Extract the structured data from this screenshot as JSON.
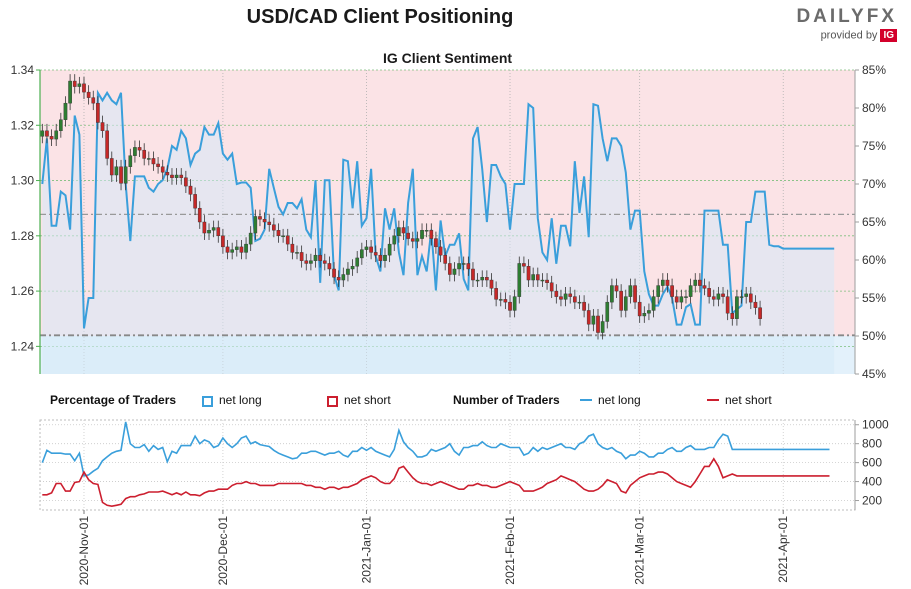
{
  "header": {
    "title": "USD/CAD Client Positioning",
    "subtitle": "IG Client Sentiment",
    "brand_logo_main": "DAILY",
    "brand_logo_fx": "FX",
    "brand_provided_by": "provided by",
    "brand_ig": "IG"
  },
  "legend": {
    "pct_title": "Percentage of Traders",
    "pct_long": "net long",
    "pct_short": "net short",
    "num_title": "Number of Traders",
    "num_long": "net long",
    "num_short": "net short"
  },
  "colors": {
    "net_long": "#3a9fdb",
    "net_short": "#cc1f2f",
    "candle_up": "#2e7d32",
    "candle_down": "#c62828",
    "long_fill": "#e3f1fb",
    "short_fill": "#fbe3e6",
    "axis_green": "#4caf50"
  },
  "chart_data": [
    {
      "type": "candlestick",
      "title": "IG Client Sentiment",
      "ylabel": "",
      "y_left_ticks": [
        "1.24",
        "1.26",
        "1.28",
        "1.30",
        "1.32",
        "1.34"
      ],
      "ylim": [
        1.23,
        1.34
      ],
      "y_right_ticks": [
        "45%",
        "50%",
        "55%",
        "60%",
        "65%",
        "70%",
        "75%",
        "80%",
        "85%"
      ],
      "y_right_lim": [
        45,
        85
      ],
      "x_ticks": [
        "2020-Nov-01",
        "2020-Dec-01",
        "2021-Jan-01",
        "2021-Feb-01",
        "2021-Mar-01",
        "2021-Apr-01"
      ],
      "x_tick_positions": [
        9,
        39,
        70,
        101,
        129,
        160
      ],
      "x_count": 176,
      "grid": true,
      "reference_lines": {
        "usdcad": 1.244,
        "percent": 66
      },
      "close": [
        1.318,
        1.316,
        1.315,
        1.318,
        1.322,
        1.328,
        1.336,
        1.334,
        1.335,
        1.332,
        1.33,
        1.328,
        1.321,
        1.318,
        1.308,
        1.302,
        1.305,
        1.299,
        1.305,
        1.309,
        1.312,
        1.311,
        1.308,
        1.308,
        1.306,
        1.305,
        1.303,
        1.302,
        1.301,
        1.302,
        1.301,
        1.298,
        1.295,
        1.29,
        1.285,
        1.281,
        1.282,
        1.283,
        1.28,
        1.276,
        1.274,
        1.275,
        1.276,
        1.274,
        1.277,
        1.281,
        1.287,
        1.286,
        1.285,
        1.284,
        1.282,
        1.28,
        1.28,
        1.277,
        1.274,
        1.274,
        1.271,
        1.27,
        1.271,
        1.273,
        1.271,
        1.27,
        1.268,
        1.265,
        1.264,
        1.266,
        1.268,
        1.269,
        1.272,
        1.275,
        1.276,
        1.274,
        1.273,
        1.271,
        1.273,
        1.277,
        1.28,
        1.283,
        1.281,
        1.279,
        1.278,
        1.279,
        1.282,
        1.282,
        1.279,
        1.276,
        1.273,
        1.27,
        1.266,
        1.268,
        1.27,
        1.27,
        1.268,
        1.264,
        1.264,
        1.265,
        1.264,
        1.261,
        1.257,
        1.257,
        1.256,
        1.253,
        1.258,
        1.27,
        1.269,
        1.264,
        1.266,
        1.264,
        1.264,
        1.263,
        1.26,
        1.258,
        1.257,
        1.259,
        1.258,
        1.256,
        1.256,
        1.253,
        1.248,
        1.251,
        1.245,
        1.249,
        1.256,
        1.262,
        1.26,
        1.253,
        1.258,
        1.262,
        1.256,
        1.251,
        1.252,
        1.253,
        1.258,
        1.262,
        1.264,
        1.262,
        1.258,
        1.256,
        1.258,
        1.258,
        1.262,
        1.264,
        1.262,
        1.261,
        1.258,
        1.257,
        1.259,
        1.258,
        1.252,
        1.25,
        1.258,
        1.258,
        1.259,
        1.256,
        1.254,
        1.25
      ],
      "percent_long": [
        70,
        76,
        64.5,
        64.5,
        69,
        68.5,
        64,
        79,
        76.5,
        51,
        55,
        55,
        82,
        81,
        82,
        81,
        80.5,
        82,
        70,
        62.5,
        71,
        71,
        71,
        69.5,
        69,
        70,
        70.5,
        72,
        75,
        74.5,
        77,
        76,
        72.5,
        74,
        74.5,
        77.5,
        76.5,
        76.5,
        78,
        74,
        73.2,
        74,
        70,
        70.2,
        70.2,
        69.5,
        62.5,
        62.8,
        64,
        72,
        69.5,
        67,
        66,
        67.5,
        67.5,
        66.8,
        68,
        64,
        63,
        70.5,
        57,
        70.5,
        70.5,
        58,
        56,
        73.2,
        73,
        66.8,
        73,
        64.5,
        65.5,
        72,
        60.5,
        58.5,
        66.8,
        64,
        66.8,
        61,
        58,
        67.5,
        72,
        58,
        60.5,
        58.5,
        64,
        56,
        65.2,
        60.5,
        62,
        62,
        63.5,
        57.5,
        56,
        76,
        77.5,
        72,
        65,
        72.5,
        72.5,
        71,
        70,
        64,
        70,
        70,
        70,
        80.5,
        80,
        65.5,
        61,
        60,
        65.5,
        59.5,
        64.5,
        64.5,
        61.8,
        73,
        66.2,
        71,
        63,
        80.5,
        80.3,
        76,
        73,
        76,
        76,
        75,
        71.5,
        64,
        66.5,
        66.5,
        58.5,
        55.5,
        54,
        54,
        55.5,
        56.5,
        55,
        51.5,
        51.5,
        53.8,
        54.2,
        51.5,
        51.5,
        66.5,
        66.5,
        66.5,
        66.5,
        62,
        62,
        53,
        53.5,
        54,
        65,
        65,
        69,
        69,
        69,
        62,
        61.8,
        61.8,
        61.5,
        61.5,
        61.5,
        61.5,
        61.5,
        61.5,
        61.5,
        61.5,
        61.5,
        61.5,
        61.5,
        61.5
      ],
      "plotted_points": 168
    },
    {
      "type": "line",
      "title": "Number of Traders",
      "y_ticks": [
        "200",
        "400",
        "600",
        "800",
        "1000"
      ],
      "ylim": [
        100,
        1050
      ],
      "series": [
        {
          "name": "net long",
          "values": [
            600,
            730,
            700,
            700,
            700,
            690,
            690,
            620,
            700,
            460,
            470,
            510,
            540,
            620,
            660,
            700,
            720,
            730,
            1030,
            800,
            760,
            760,
            790,
            720,
            780,
            740,
            760,
            610,
            720,
            700,
            780,
            780,
            780,
            880,
            800,
            840,
            820,
            760,
            780,
            860,
            800,
            760,
            800,
            860,
            880,
            800,
            820,
            790,
            780,
            770,
            730,
            700,
            680,
            660,
            640,
            650,
            700,
            700,
            720,
            720,
            700,
            680,
            700,
            700,
            720,
            680,
            660,
            720,
            720,
            760,
            730,
            760,
            720,
            700,
            680,
            660,
            740,
            940,
            820,
            760,
            720,
            660,
            660,
            680,
            740,
            720,
            740,
            760,
            800,
            720,
            680,
            760,
            760,
            780,
            780,
            820,
            780,
            760,
            760,
            800,
            780,
            760,
            760,
            760,
            680,
            700,
            760,
            720,
            760,
            740,
            760,
            780,
            800,
            760,
            760,
            740,
            800,
            820,
            880,
            900,
            800,
            760,
            740,
            760,
            720,
            700,
            640,
            680,
            680,
            720,
            700,
            660,
            660,
            700,
            700,
            740,
            760,
            720,
            720,
            760,
            780,
            740,
            740,
            740,
            760,
            760,
            840,
            900,
            880,
            740,
            740,
            740,
            740,
            740,
            740,
            740,
            740,
            740,
            740,
            740,
            740,
            740,
            740,
            740,
            740,
            740,
            740,
            740,
            740,
            740,
            740
          ]
        },
        {
          "name": "net short",
          "values": [
            260,
            260,
            280,
            380,
            380,
            300,
            300,
            390,
            400,
            500,
            420,
            380,
            370,
            180,
            150,
            140,
            150,
            160,
            220,
            240,
            240,
            260,
            270,
            290,
            290,
            290,
            300,
            280,
            260,
            280,
            260,
            290,
            260,
            260,
            250,
            280,
            300,
            300,
            320,
            320,
            320,
            360,
            380,
            380,
            400,
            380,
            380,
            360,
            360,
            360,
            360,
            380,
            380,
            380,
            380,
            380,
            380,
            360,
            360,
            340,
            340,
            320,
            340,
            340,
            320,
            340,
            340,
            360,
            380,
            420,
            440,
            460,
            440,
            400,
            380,
            380,
            430,
            540,
            560,
            500,
            440,
            400,
            380,
            380,
            360,
            380,
            400,
            380,
            360,
            340,
            320,
            320,
            360,
            360,
            380,
            360,
            360,
            340,
            340,
            360,
            380,
            400,
            380,
            360,
            300,
            300,
            300,
            320,
            340,
            380,
            400,
            420,
            460,
            440,
            420,
            400,
            360,
            320,
            300,
            300,
            320,
            360,
            420,
            400,
            380,
            300,
            280,
            360,
            400,
            440,
            460,
            480,
            480,
            500,
            500,
            480,
            440,
            400,
            380,
            360,
            340,
            400,
            480,
            560,
            560,
            640,
            560,
            440,
            460,
            480,
            460,
            460,
            460,
            460,
            460,
            460,
            460,
            460,
            460,
            460,
            460,
            460,
            460,
            460,
            460,
            460,
            460,
            460,
            460,
            460,
            460
          ]
        }
      ]
    }
  ]
}
